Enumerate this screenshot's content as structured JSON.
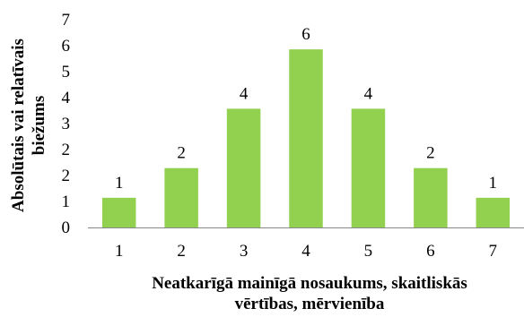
{
  "chart_data": {
    "type": "bar",
    "categories": [
      "1",
      "2",
      "3",
      "4",
      "5",
      "6",
      "7"
    ],
    "values": [
      1,
      2,
      4,
      6,
      4,
      2,
      1
    ],
    "data_labels": [
      "1",
      "2",
      "4",
      "6",
      "4",
      "2",
      "1"
    ],
    "y_ticks": [
      "0",
      "1",
      "2",
      "2",
      "3",
      "4",
      "5",
      "6",
      "7"
    ],
    "ylim": [
      0,
      7
    ],
    "xlabel_lines": [
      "Neatkarīgā mainīgā nosaukums, skaitliskās",
      "vērtības, mērvienība"
    ],
    "ylabel_lines": [
      "Absolūtais vai relatīvais",
      "biežums"
    ],
    "bar_color": "#92D050",
    "grid": false
  }
}
